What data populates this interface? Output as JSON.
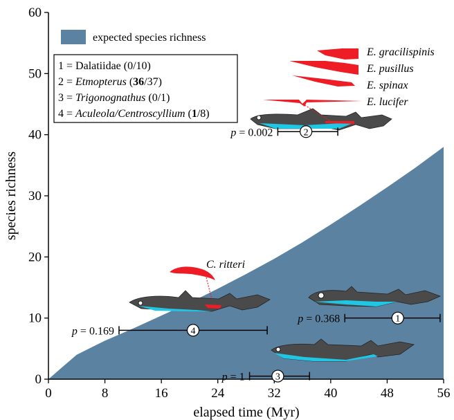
{
  "chart_data": {
    "type": "area",
    "xlabel": "elapsed time (Myr)",
    "ylabel": "species richness",
    "xlim": [
      0,
      56
    ],
    "ylim": [
      0,
      60
    ],
    "xticks": [
      0,
      8,
      16,
      24,
      32,
      40,
      48,
      56
    ],
    "yticks": [
      0,
      10,
      20,
      30,
      40,
      50,
      60
    ],
    "series": [
      {
        "name": "expected species richness",
        "color": "#5b82a0",
        "x": [
          0,
          2,
          4,
          8,
          12,
          16,
          20,
          24,
          28,
          32,
          36,
          40,
          44,
          48,
          52,
          56
        ],
        "y": [
          0,
          2,
          4,
          6.3,
          8.3,
          10.4,
          12.5,
          14.8,
          17.2,
          19.7,
          22.4,
          25.3,
          28.3,
          31.4,
          34.6,
          38
        ]
      }
    ],
    "legend": {
      "position": "top-left",
      "entries": [
        {
          "prefix": "1 = ",
          "name": "Dalatiidae",
          "bold": "",
          "rest": "(0/10)",
          "italic": false
        },
        {
          "prefix": "2 = ",
          "name": "Etmopterus",
          "bold": "36",
          "rest": "/37)",
          "italic": true
        },
        {
          "prefix": "3 = ",
          "name": "Trigonognathus",
          "bold": "",
          "rest": "(0/1)",
          "italic": true
        },
        {
          "prefix": "4 = ",
          "name": "Aculeola/Centroscyllium",
          "bold": "1",
          "rest": "/8)",
          "italic": true
        }
      ]
    },
    "intervals": [
      {
        "id": "1",
        "x_low": 42,
        "x_high": 55.5,
        "center": 49.5,
        "y": 10,
        "p_label": "p = 0.368"
      },
      {
        "id": "2",
        "x_low": 32.5,
        "x_high": 41,
        "center": 36.5,
        "y": 40.5,
        "p_label": "p = 0.002"
      },
      {
        "id": "3",
        "x_low": 28.5,
        "x_high": 37,
        "center": 32.5,
        "y": 0.5,
        "p_label": "p = 1"
      },
      {
        "id": "4",
        "x_low": 10,
        "x_high": 31,
        "center": 20.5,
        "y": 8,
        "p_label": "p = 0.169"
      }
    ],
    "species_labels": [
      "E. gracilispinis",
      "E. pusillus",
      "E. spinax",
      "E. lucifer",
      "C. ritteri"
    ],
    "colors": {
      "area": "#5b82a0",
      "shark_body": "#4a4a4a",
      "shark_belly": "#1fc7e4",
      "luminous": "#ee1c25"
    }
  }
}
